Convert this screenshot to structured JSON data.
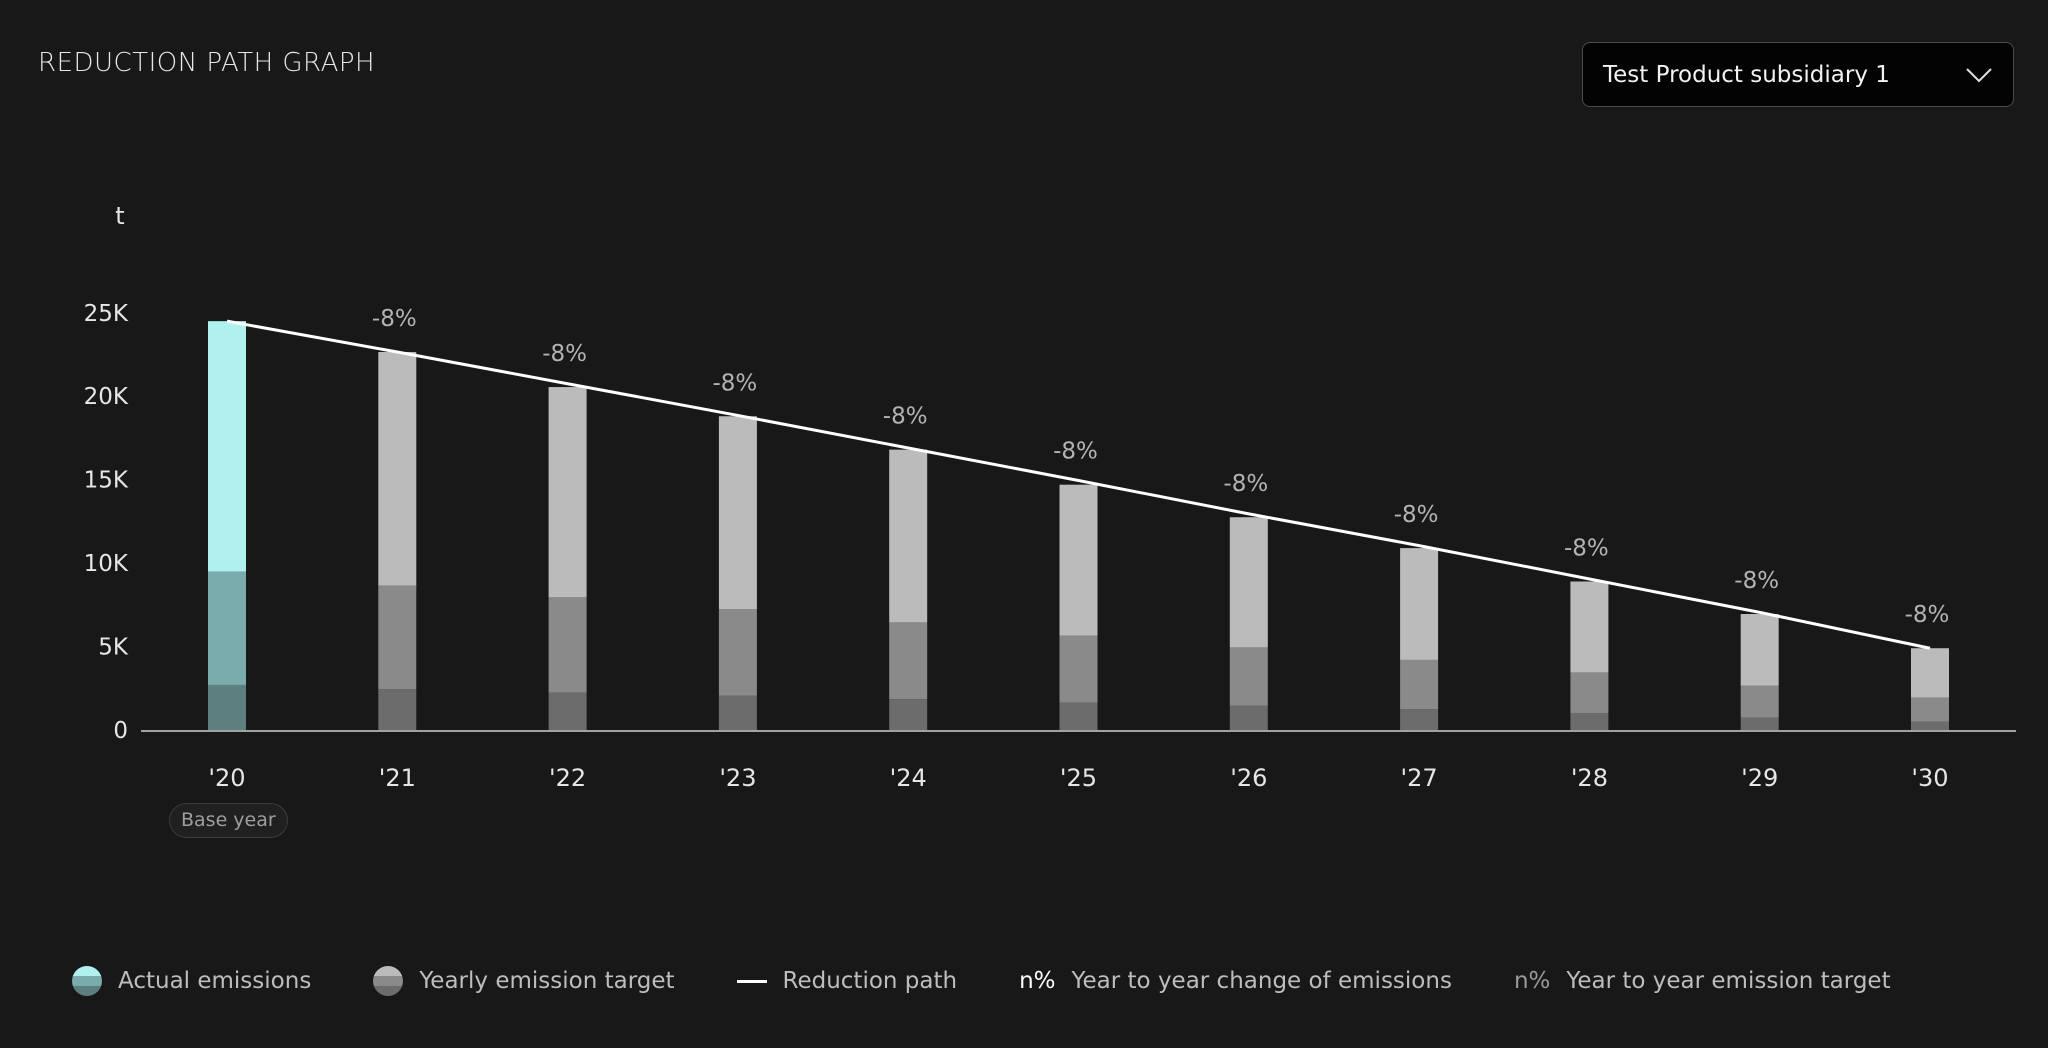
{
  "header": {
    "title": "REDUCTION PATH GRAPH"
  },
  "selector": {
    "value": "Test Product subsidiary 1",
    "icon": "chevron-down-icon"
  },
  "base_year_label": "Base year",
  "colors": {
    "background": "#181818",
    "actual_top": "#aef1ee",
    "actual_mid": "#7aabad",
    "actual_low": "#5d7f80",
    "target_top": "#bbbbbb",
    "target_mid": "#8a8a8a",
    "target_low": "#6c6c6c",
    "reduction_path": "#ffffff"
  },
  "legend": {
    "actual": "Actual emissions",
    "target": "Yearly emission target",
    "path": "Reduction path",
    "change_symbol": "n%",
    "change": "Year to year change of emissions",
    "target_change_symbol": "n%",
    "target_change": "Year to year emission target"
  },
  "chart_data": {
    "type": "bar",
    "ylabel": "t",
    "ylim": [
      0,
      25000
    ],
    "yticks": [
      0,
      5000,
      10000,
      15000,
      20000,
      25000
    ],
    "ytick_labels": [
      "0",
      "5K",
      "10K",
      "15K",
      "20K",
      "25K"
    ],
    "categories": [
      "'20",
      "'21",
      "'22",
      "'23",
      "'24",
      "'25",
      "'26",
      "'27",
      "'28",
      "'29",
      "'30"
    ],
    "base_year": "'20",
    "series": [
      {
        "name": "Actual emissions",
        "stacks": {
          "low": [
            2700
          ],
          "mid": [
            6800
          ],
          "high": [
            15000
          ]
        }
      },
      {
        "name": "Yearly emission target",
        "stacks": {
          "low": [
            null,
            2450,
            2250,
            2050,
            1850,
            1650,
            1450,
            1250,
            1000,
            750,
            500
          ],
          "mid": [
            null,
            6200,
            5700,
            5200,
            4600,
            4000,
            3500,
            2950,
            2450,
            1900,
            1450
          ],
          "high": [
            null,
            14000,
            12600,
            11550,
            10350,
            9050,
            7800,
            6700,
            5450,
            4300,
            2950
          ]
        },
        "totals": [
          null,
          22650,
          20550,
          18800,
          16800,
          14700,
          12750,
          10900,
          8900,
          6950,
          4900
        ]
      }
    ],
    "reduction_path": [
      24500,
      22540,
      20740,
      19080,
      17550,
      16150,
      14850,
      12950,
      10900,
      8900,
      4900
    ],
    "reduction_path_visible": [
      24500,
      22650,
      20750,
      18850,
      16900,
      14950,
      12950,
      11050,
      9050,
      7050,
      4900
    ],
    "change_labels": [
      "",
      "-8%",
      "-8%",
      "-8%",
      "-8%",
      "-8%",
      "-8%",
      "-8%",
      "-8%",
      "-8%",
      "-8%"
    ]
  }
}
